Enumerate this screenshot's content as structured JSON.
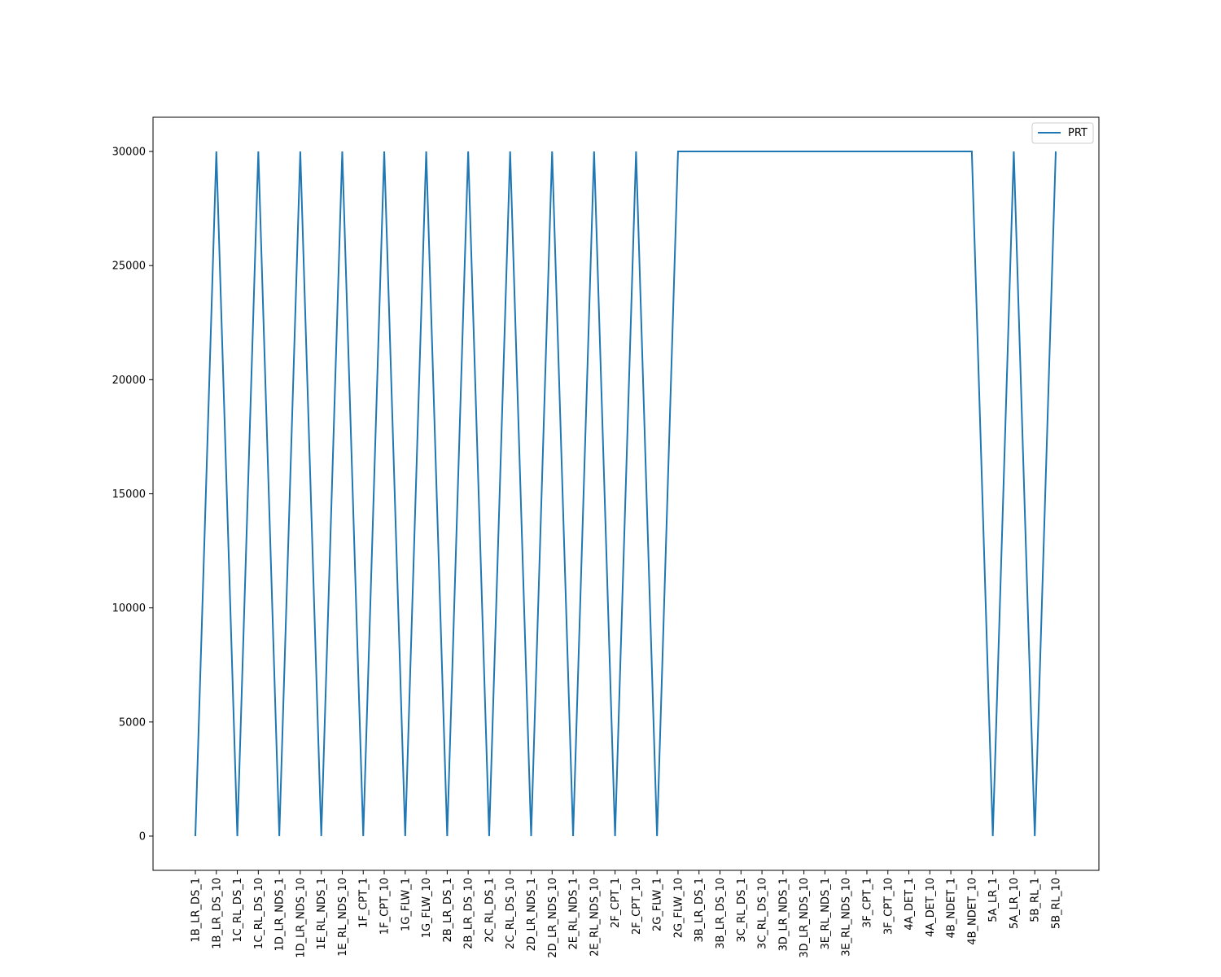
{
  "chart_data": {
    "type": "line",
    "title": "",
    "xlabel": "",
    "ylabel": "",
    "categories": [
      "1B_LR_DS_1",
      "1B_LR_DS_10",
      "1C_RL_DS_1",
      "1C_RL_DS_10",
      "1D_LR_NDS_1",
      "1D_LR_NDS_10",
      "1E_RL_NDS_1",
      "1E_RL_NDS_10",
      "1F_CPT_1",
      "1F_CPT_10",
      "1G_FLW_1",
      "1G_FLW_10",
      "2B_LR_DS_1",
      "2B_LR_DS_10",
      "2C_RL_DS_1",
      "2C_RL_DS_10",
      "2D_LR_NDS_1",
      "2D_LR_NDS_10",
      "2E_RL_NDS_1",
      "2E_RL_NDS_10",
      "2F_CPT_1",
      "2F_CPT_10",
      "2G_FLW_1",
      "2G_FLW_10",
      "3B_LR_DS_1",
      "3B_LR_DS_10",
      "3C_RL_DS_1",
      "3C_RL_DS_10",
      "3D_LR_NDS_1",
      "3D_LR_NDS_10",
      "3E_RL_NDS_1",
      "3E_RL_NDS_10",
      "3F_CPT_1",
      "3F_CPT_10",
      "4A_DET_1",
      "4A_DET_10",
      "4B_NDET_1",
      "4B_NDET_10",
      "5A_LR_1",
      "5A_LR_10",
      "5B_RL_1",
      "5B_RL_10"
    ],
    "series": [
      {
        "name": "PRT",
        "color": "#1f77b4",
        "values": [
          0,
          30000,
          0,
          30000,
          0,
          30000,
          0,
          30000,
          0,
          30000,
          0,
          30000,
          0,
          30000,
          0,
          30000,
          0,
          30000,
          0,
          30000,
          0,
          30000,
          0,
          30000,
          30000,
          30000,
          30000,
          30000,
          30000,
          30000,
          30000,
          30000,
          30000,
          30000,
          30000,
          30000,
          30000,
          30000,
          0,
          30000,
          0,
          30000
        ]
      }
    ],
    "yticks": [
      0,
      5000,
      10000,
      15000,
      20000,
      25000,
      30000
    ],
    "ylim": [
      -1500,
      31500
    ],
    "grid": false,
    "legend_position": "top-right"
  }
}
